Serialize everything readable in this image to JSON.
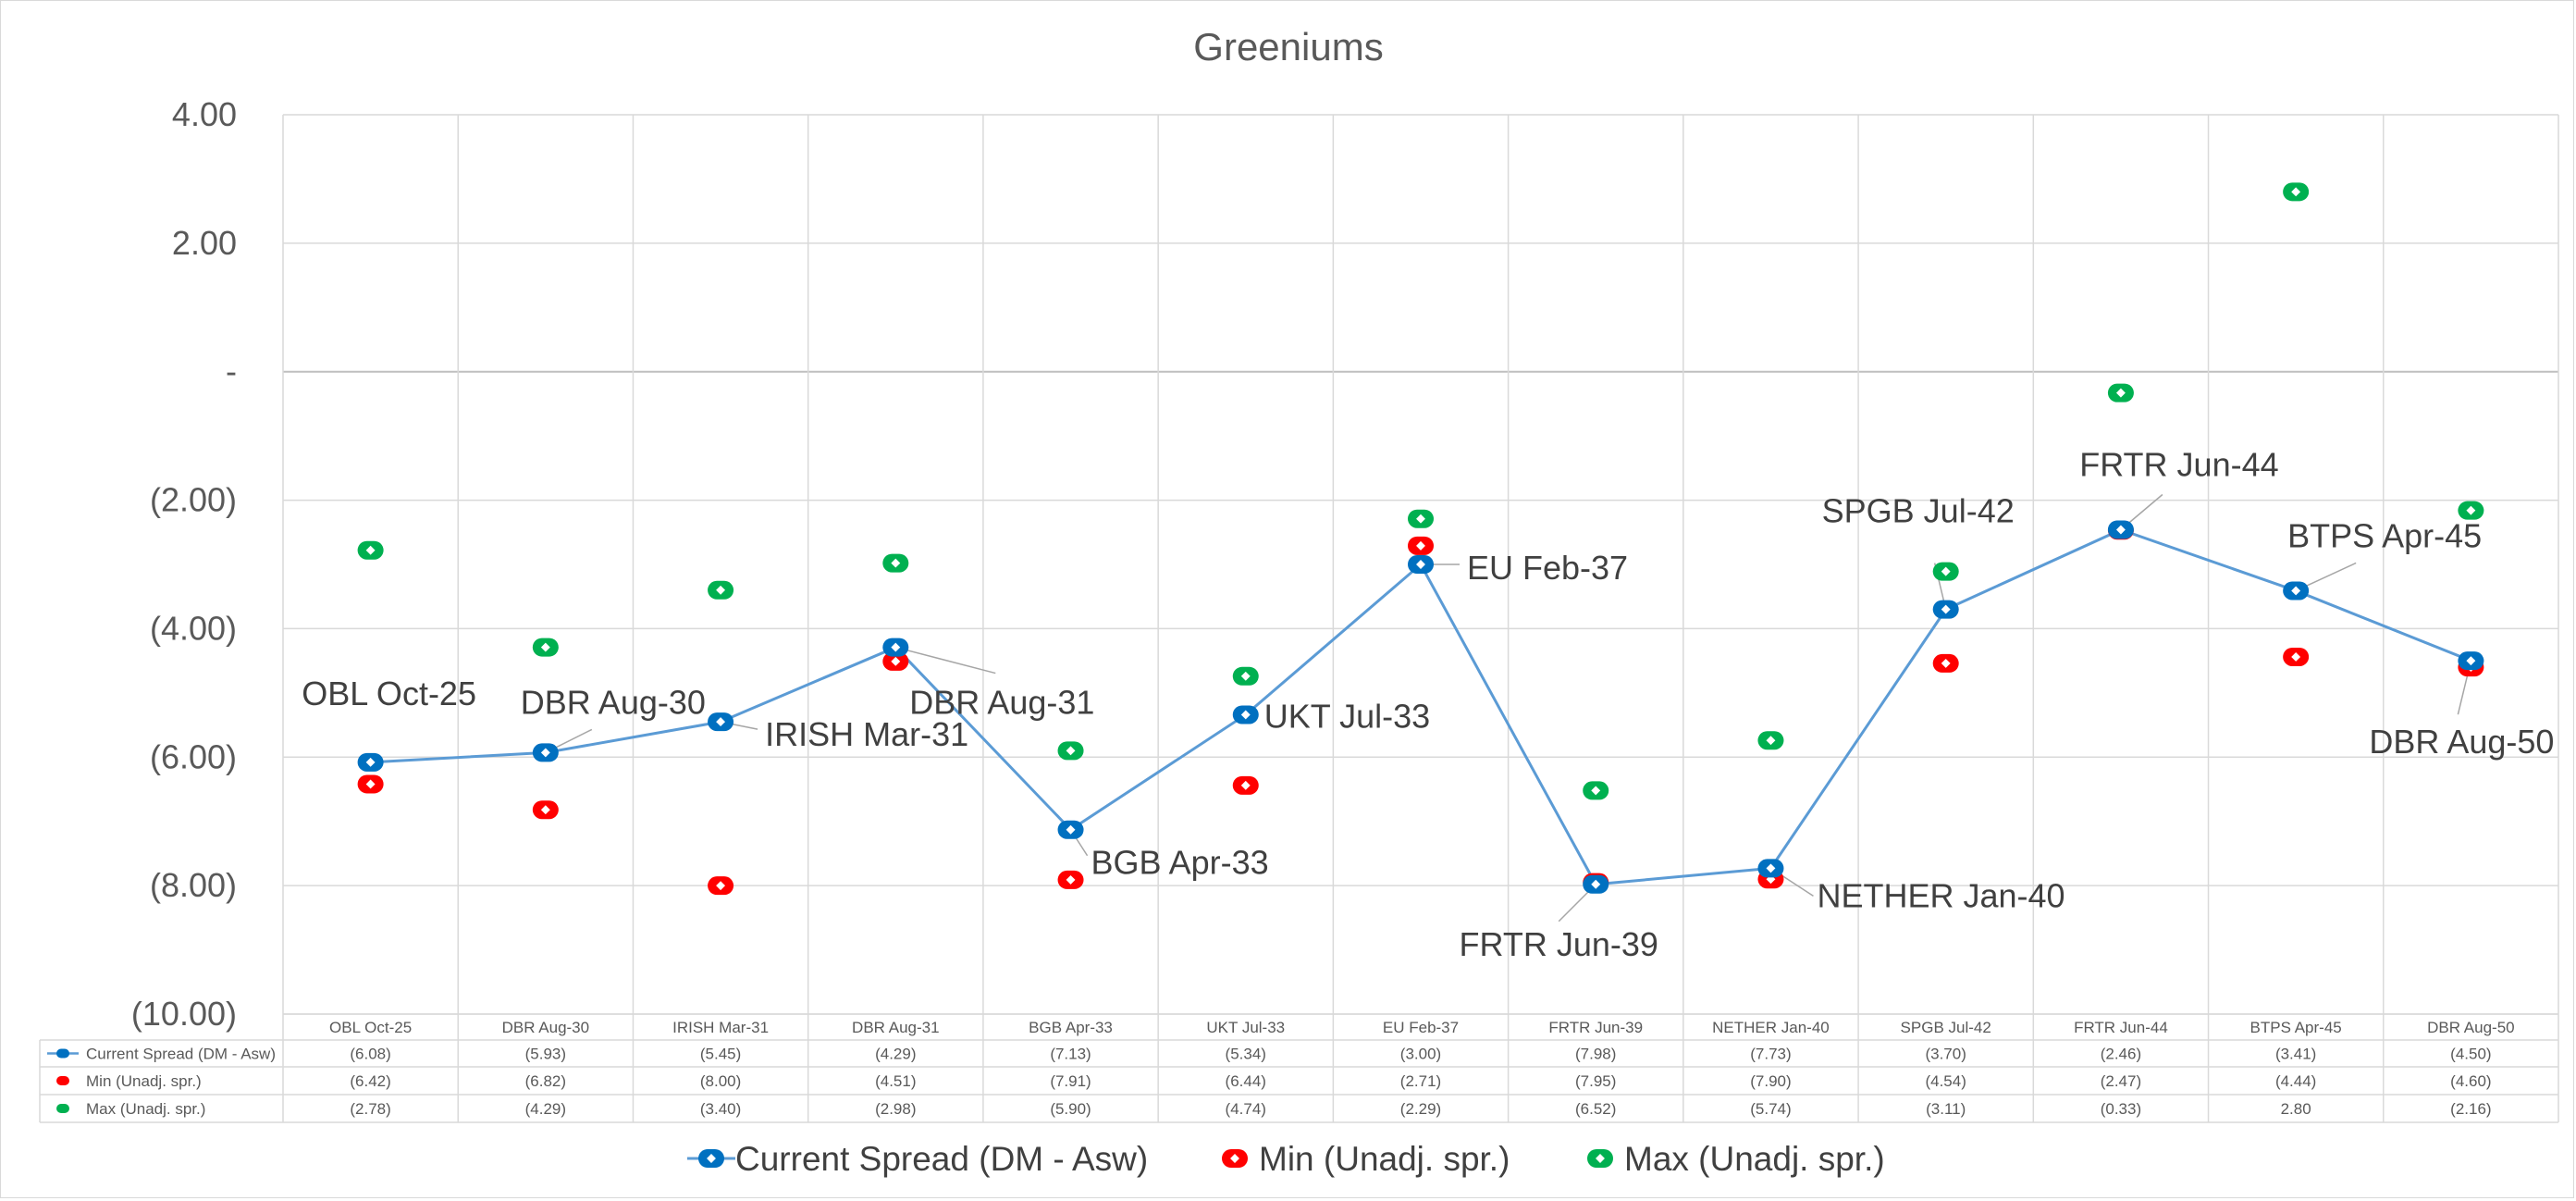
{
  "chart_data": {
    "type": "line",
    "title": "Greeniums",
    "categories": [
      "OBL Oct-25",
      "DBR Aug-30",
      "IRISH Mar-31",
      "DBR Aug-31",
      "BGB Apr-33",
      "UKT Jul-33",
      "EU Feb-37",
      "FRTR Jun-39",
      "NETHER Jan-40",
      "SPGB Jul-42",
      "FRTR Jun-44",
      "BTPS Apr-45",
      "DBR Aug-50"
    ],
    "ylim": [
      -10,
      4
    ],
    "y_ticks": [
      {
        "value": 4,
        "label": "4.00"
      },
      {
        "value": 2,
        "label": "2.00"
      },
      {
        "value": 0,
        "label": "-"
      },
      {
        "value": -2,
        "label": "(2.00)"
      },
      {
        "value": -4,
        "label": "(4.00)"
      },
      {
        "value": -6,
        "label": "(6.00)"
      },
      {
        "value": -8,
        "label": "(8.00)"
      },
      {
        "value": -10,
        "label": "(10.00)"
      }
    ],
    "grid": true,
    "legend_position": "bottom",
    "series": [
      {
        "name": "Current Spread (DM - Asw)",
        "style": "line-markers",
        "color": "#0070c0",
        "line_color": "#5b9bd5",
        "values": [
          -6.08,
          -5.93,
          -5.45,
          -4.29,
          -7.13,
          -5.34,
          -3.0,
          -7.98,
          -7.73,
          -3.7,
          -2.46,
          -3.41,
          -4.5
        ],
        "table_values": [
          "(6.08)",
          "(5.93)",
          "(5.45)",
          "(4.29)",
          "(7.13)",
          "(5.34)",
          "(3.00)",
          "(7.98)",
          "(7.73)",
          "(3.70)",
          "(2.46)",
          "(3.41)",
          "(4.50)"
        ]
      },
      {
        "name": "Min (Unadj. spr.)",
        "style": "markers",
        "color": "#ff0000",
        "values": [
          -6.42,
          -6.82,
          -8.0,
          -4.51,
          -7.91,
          -6.44,
          -2.71,
          -7.95,
          -7.9,
          -4.54,
          -2.47,
          -4.44,
          -4.6
        ],
        "table_values": [
          "(6.42)",
          "(6.82)",
          "(8.00)",
          "(4.51)",
          "(7.91)",
          "(6.44)",
          "(2.71)",
          "(7.95)",
          "(7.90)",
          "(4.54)",
          "(2.47)",
          "(4.44)",
          "(4.60)"
        ]
      },
      {
        "name": "Max (Unadj. spr.)",
        "style": "markers",
        "color": "#00b050",
        "values": [
          -2.78,
          -4.29,
          -3.4,
          -2.98,
          -5.9,
          -4.74,
          -2.29,
          -6.52,
          -5.74,
          -3.11,
          -0.33,
          2.8,
          -2.16
        ],
        "table_values": [
          "(2.78)",
          "(4.29)",
          "(3.40)",
          "(2.98)",
          "(5.90)",
          "(4.74)",
          "(2.29)",
          "(6.52)",
          "(5.74)",
          "(3.11)",
          "(0.33)",
          "2.80",
          "(2.16)"
        ]
      }
    ],
    "annotations": [
      {
        "text": "OBL Oct-25",
        "index": 0
      },
      {
        "text": "DBR Aug-30",
        "index": 1
      },
      {
        "text": "IRISH Mar-31",
        "index": 2
      },
      {
        "text": "DBR Aug-31",
        "index": 3
      },
      {
        "text": "BGB Apr-33",
        "index": 4
      },
      {
        "text": "UKT Jul-33",
        "index": 5
      },
      {
        "text": "EU Feb-37",
        "index": 6
      },
      {
        "text": "FRTR Jun-39",
        "index": 7
      },
      {
        "text": "NETHER Jan-40",
        "index": 8
      },
      {
        "text": "SPGB Jul-42",
        "index": 9
      },
      {
        "text": "FRTR Jun-44",
        "index": 10
      },
      {
        "text": "BTPS Apr-45",
        "index": 11
      },
      {
        "text": "DBR Aug-50",
        "index": 12
      }
    ]
  }
}
